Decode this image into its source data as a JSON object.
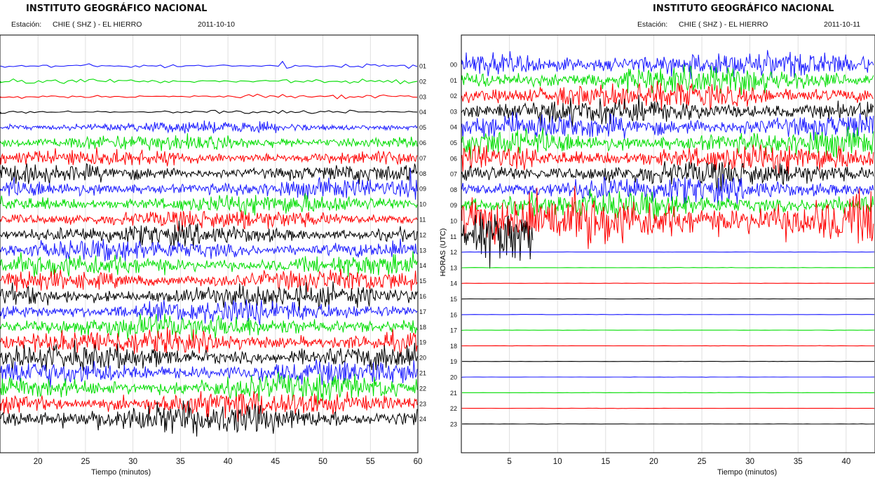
{
  "chart_data": [
    {
      "type": "line",
      "title": "INSTITUTO GEOGRÁFICO NACIONAL",
      "station_label": "Estación:",
      "station": "CHIE ( SHZ ) - EL HIERRO",
      "date": "2011-10-10",
      "xlabel": "Tiempo (minutos)",
      "ylabel": "",
      "xlim": [
        16,
        60
      ],
      "x_ticks": [
        "20",
        "25",
        "30",
        "35",
        "40",
        "45",
        "50",
        "55",
        "60"
      ],
      "x_tick_values": [
        20,
        25,
        30,
        35,
        40,
        45,
        50,
        55,
        60
      ],
      "traces": [
        {
          "label": "01",
          "color": "#1a1aff",
          "amplitude": 0.4,
          "events": [
            {
              "minute": 45.8,
              "amplitude": 2.6
            }
          ]
        },
        {
          "label": "02",
          "color": "#00dd00",
          "amplitude": 0.4,
          "events": [
            {
              "minute": 33.0,
              "amplitude": 1.7
            }
          ]
        },
        {
          "label": "03",
          "color": "#ff0000",
          "amplitude": 0.35
        },
        {
          "label": "04",
          "color": "#000000",
          "amplitude": 0.35
        },
        {
          "label": "05",
          "color": "#1a1aff",
          "amplitude": 1.0
        },
        {
          "label": "06",
          "color": "#00dd00",
          "amplitude": 1.4
        },
        {
          "label": "07",
          "color": "#ff0000",
          "amplitude": 1.5
        },
        {
          "label": "08",
          "color": "#000000",
          "amplitude": 1.6
        },
        {
          "label": "09",
          "color": "#1a1aff",
          "amplitude": 1.7,
          "events": [
            {
              "minute": 59.3,
              "amplitude": 2.2
            }
          ]
        },
        {
          "label": "10",
          "color": "#00dd00",
          "amplitude": 1.8
        },
        {
          "label": "11",
          "color": "#ff0000",
          "amplitude": 1.8
        },
        {
          "label": "12",
          "color": "#000000",
          "amplitude": 1.9
        },
        {
          "label": "13",
          "color": "#1a1aff",
          "amplitude": 1.9
        },
        {
          "label": "14",
          "color": "#00dd00",
          "amplitude": 2.0
        },
        {
          "label": "15",
          "color": "#ff0000",
          "amplitude": 2.0
        },
        {
          "label": "16",
          "color": "#000000",
          "amplitude": 2.1
        },
        {
          "label": "17",
          "color": "#1a1aff",
          "amplitude": 2.1
        },
        {
          "label": "18",
          "color": "#00dd00",
          "amplitude": 2.2
        },
        {
          "label": "19",
          "color": "#ff0000",
          "amplitude": 2.2
        },
        {
          "label": "20",
          "color": "#000000",
          "amplitude": 2.3
        },
        {
          "label": "21",
          "color": "#1a1aff",
          "amplitude": 2.3
        },
        {
          "label": "22",
          "color": "#00dd00",
          "amplitude": 2.4
        },
        {
          "label": "23",
          "color": "#ff0000",
          "amplitude": 2.4
        },
        {
          "label": "24",
          "color": "#000000",
          "amplitude": 2.8
        }
      ]
    },
    {
      "type": "line",
      "title": "INSTITUTO GEOGRÁFICO NACIONAL",
      "station_label": "Estación:",
      "station": "CHIE ( SHZ ) - EL HIERRO",
      "date": "2011-10-11",
      "xlabel": "Tiempo (minutos)",
      "ylabel": "HORAS (UTC)",
      "xlim": [
        0,
        43
      ],
      "x_ticks": [
        "5",
        "10",
        "15",
        "20",
        "25",
        "30",
        "35",
        "40"
      ],
      "x_tick_values": [
        5,
        10,
        15,
        20,
        25,
        30,
        35,
        40
      ],
      "traces": [
        {
          "label": "00",
          "color": "#1a1aff",
          "amplitude": 2.4
        },
        {
          "label": "01",
          "color": "#00dd00",
          "amplitude": 2.4
        },
        {
          "label": "02",
          "color": "#ff0000",
          "amplitude": 2.4
        },
        {
          "label": "03",
          "color": "#000000",
          "amplitude": 2.3
        },
        {
          "label": "04",
          "color": "#1a1aff",
          "amplitude": 2.4
        },
        {
          "label": "05",
          "color": "#00dd00",
          "amplitude": 2.4
        },
        {
          "label": "06",
          "color": "#ff0000",
          "amplitude": 2.4
        },
        {
          "label": "07",
          "color": "#000000",
          "amplitude": 2.3
        },
        {
          "label": "08",
          "color": "#1a1aff",
          "amplitude": 2.4
        },
        {
          "label": "09",
          "color": "#00dd00",
          "amplitude": 2.4
        },
        {
          "label": "10",
          "color": "#ff0000",
          "amplitude": 4.8
        },
        {
          "label": "11",
          "color": "#000000",
          "amplitude": 4.8,
          "end_minute": 7.5
        },
        {
          "label": "12",
          "color": "#1a1aff",
          "amplitude": 0.03,
          "partial": true
        },
        {
          "label": "13",
          "color": "#00dd00",
          "amplitude": 0.03
        },
        {
          "label": "14",
          "color": "#ff0000",
          "amplitude": 0.03
        },
        {
          "label": "15",
          "color": "#000000",
          "amplitude": 0.03
        },
        {
          "label": "16",
          "color": "#1a1aff",
          "amplitude": 0.03
        },
        {
          "label": "17",
          "color": "#00dd00",
          "amplitude": 0.03
        },
        {
          "label": "18",
          "color": "#ff0000",
          "amplitude": 0.03
        },
        {
          "label": "19",
          "color": "#000000",
          "amplitude": 0.03
        },
        {
          "label": "20",
          "color": "#1a1aff",
          "amplitude": 0.03
        },
        {
          "label": "21",
          "color": "#00dd00",
          "amplitude": 0.03
        },
        {
          "label": "22",
          "color": "#ff0000",
          "amplitude": 0.03
        },
        {
          "label": "23",
          "color": "#000000",
          "amplitude": 0.03
        }
      ]
    }
  ]
}
